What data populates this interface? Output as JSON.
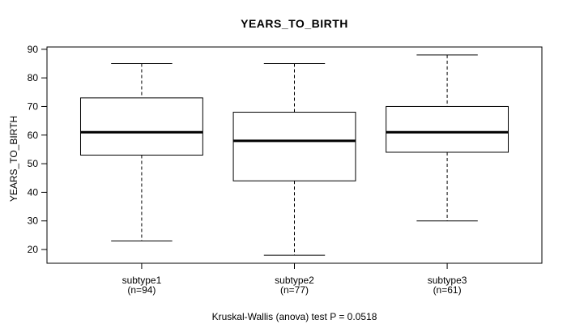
{
  "chart_data": {
    "type": "boxplot",
    "title": "YEARS_TO_BIRTH",
    "xlabel": "",
    "ylabel": "YEARS_TO_BIRTH",
    "caption": "Kruskal-Wallis (anova) test P = 0.0518",
    "ylim": [
      15.2,
      90.8
    ],
    "yticks": [
      20,
      30,
      40,
      50,
      60,
      70,
      80,
      90
    ],
    "grid": false,
    "legend": false,
    "categories": [
      "subtype1",
      "subtype2",
      "subtype3"
    ],
    "category_sublabels": [
      "(n=94)",
      "(n=77)",
      "(n=61)"
    ],
    "series": [
      {
        "name": "subtype1",
        "n": 94,
        "whisker_low": 23,
        "q1": 53,
        "median": 61,
        "q3": 73,
        "whisker_high": 85
      },
      {
        "name": "subtype2",
        "n": 77,
        "whisker_low": 18,
        "q1": 44,
        "median": 58,
        "q3": 68,
        "whisker_high": 85
      },
      {
        "name": "subtype3",
        "n": 61,
        "whisker_low": 30,
        "q1": 54,
        "median": 61,
        "q3": 70,
        "whisker_high": 88
      }
    ],
    "colors": {
      "stroke": "#000000",
      "median": "#000000",
      "box_fill": "#ffffff",
      "background": "#ffffff",
      "text": "#000000"
    }
  }
}
